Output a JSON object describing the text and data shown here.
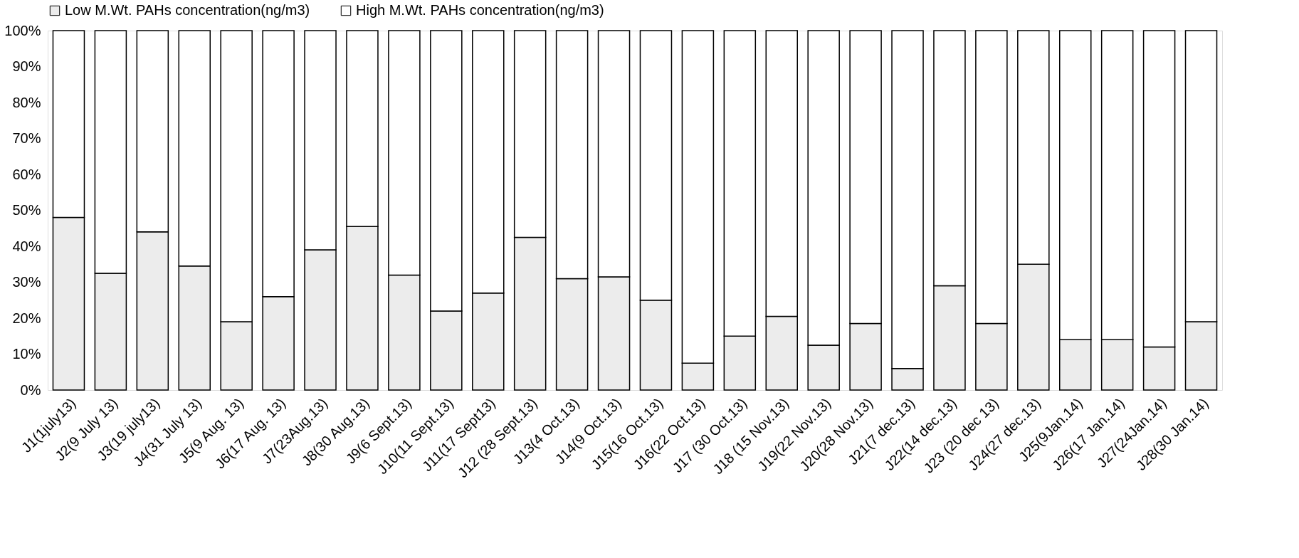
{
  "chart_data": {
    "type": "bar",
    "stacked": true,
    "categories": [
      "J1(1july13)",
      "J2(9 July 13)",
      "J3(19 july13)",
      "J4(31 July 13)",
      "J5(9 Aug. 13)",
      "J6(17 Aug. 13)",
      "J7(23Aug.13)",
      "J8(30 Aug.13)",
      "J9(6 Sept.13)",
      "J10(11 Sept.13)",
      "J11(17 Sept13)",
      "J12 (28 Sept.13)",
      "J13(4 Oct.13)",
      "J14(9 Oct.13)",
      "J15(16 Oct.13)",
      "J16(22 Oct.13)",
      "J17 (30 Oct.13)",
      "J18 (15 Nov.13)",
      "J19(22 Nov.13)",
      "J20(28 Nov.13)",
      "J21(7 dec.13)",
      "J22(14 dec.13)",
      "J23 (20 dec 13)",
      "J24(27 dec.13)",
      "J25(9Jan.14)",
      "J26(17 Jan.14)",
      "J27(24Jan.14)",
      "J28(30 Jan.14)"
    ],
    "series": [
      {
        "name": "Low M.Wt. PAHs concentration(ng/m3)",
        "color": "#ececec",
        "values": [
          48,
          32.5,
          44,
          34.5,
          19,
          26,
          39,
          45.5,
          32,
          22,
          27,
          42.5,
          31,
          31.5,
          25,
          7.5,
          15,
          20.5,
          12.5,
          18.5,
          6,
          29,
          18.5,
          35,
          14,
          14,
          12,
          19
        ]
      },
      {
        "name": "High M.Wt. PAHs concentration(ng/m3)",
        "color": "#ffffff",
        "values": [
          52,
          67.5,
          56,
          65.5,
          81,
          74,
          61,
          54.5,
          68,
          78,
          73,
          57.5,
          69,
          68.5,
          75,
          92.5,
          85,
          79.5,
          87.5,
          81.5,
          94,
          71,
          81.5,
          65,
          86,
          86,
          88,
          81
        ]
      }
    ],
    "ylim": [
      0,
      100
    ],
    "yticks": [
      {
        "value": 0,
        "label": "0%"
      },
      {
        "value": 10,
        "label": "10%"
      },
      {
        "value": 20,
        "label": "20%"
      },
      {
        "value": 30,
        "label": "30%"
      },
      {
        "value": 40,
        "label": "40%"
      },
      {
        "value": 50,
        "label": "50%"
      },
      {
        "value": 60,
        "label": "60%"
      },
      {
        "value": 70,
        "label": "70%"
      },
      {
        "value": 80,
        "label": "80%"
      },
      {
        "value": 90,
        "label": "90%"
      },
      {
        "value": 100,
        "label": "100%"
      }
    ],
    "legend": "top",
    "grid": false
  }
}
